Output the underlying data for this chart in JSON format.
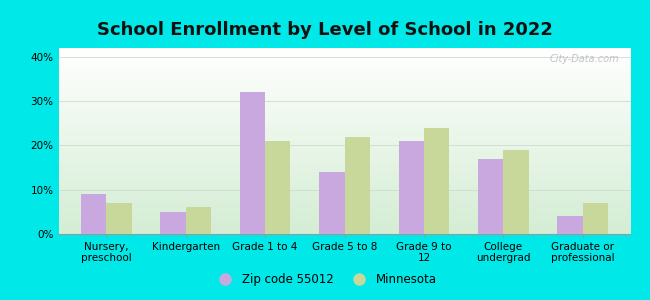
{
  "title": "School Enrollment by Level of School in 2022",
  "categories": [
    "Nursery,\npreschool",
    "Kindergarten",
    "Grade 1 to 4",
    "Grade 5 to 8",
    "Grade 9 to\n12",
    "College\nundergrad",
    "Graduate or\nprofessional"
  ],
  "zip_values": [
    9,
    5,
    32,
    14,
    21,
    17,
    4
  ],
  "mn_values": [
    7,
    6,
    21,
    22,
    24,
    19,
    7
  ],
  "zip_color": "#c9a8e0",
  "mn_color": "#c8d89a",
  "background_outer": "#00e8e8",
  "ylim": [
    0,
    42
  ],
  "yticks": [
    0,
    10,
    20,
    30,
    40
  ],
  "ytick_labels": [
    "0%",
    "10%",
    "20%",
    "30%",
    "40%"
  ],
  "legend_zip_label": "Zip code 55012",
  "legend_mn_label": "Minnesota",
  "title_fontsize": 13,
  "tick_fontsize": 7.5,
  "bar_width": 0.32,
  "watermark": "City-Data.com"
}
